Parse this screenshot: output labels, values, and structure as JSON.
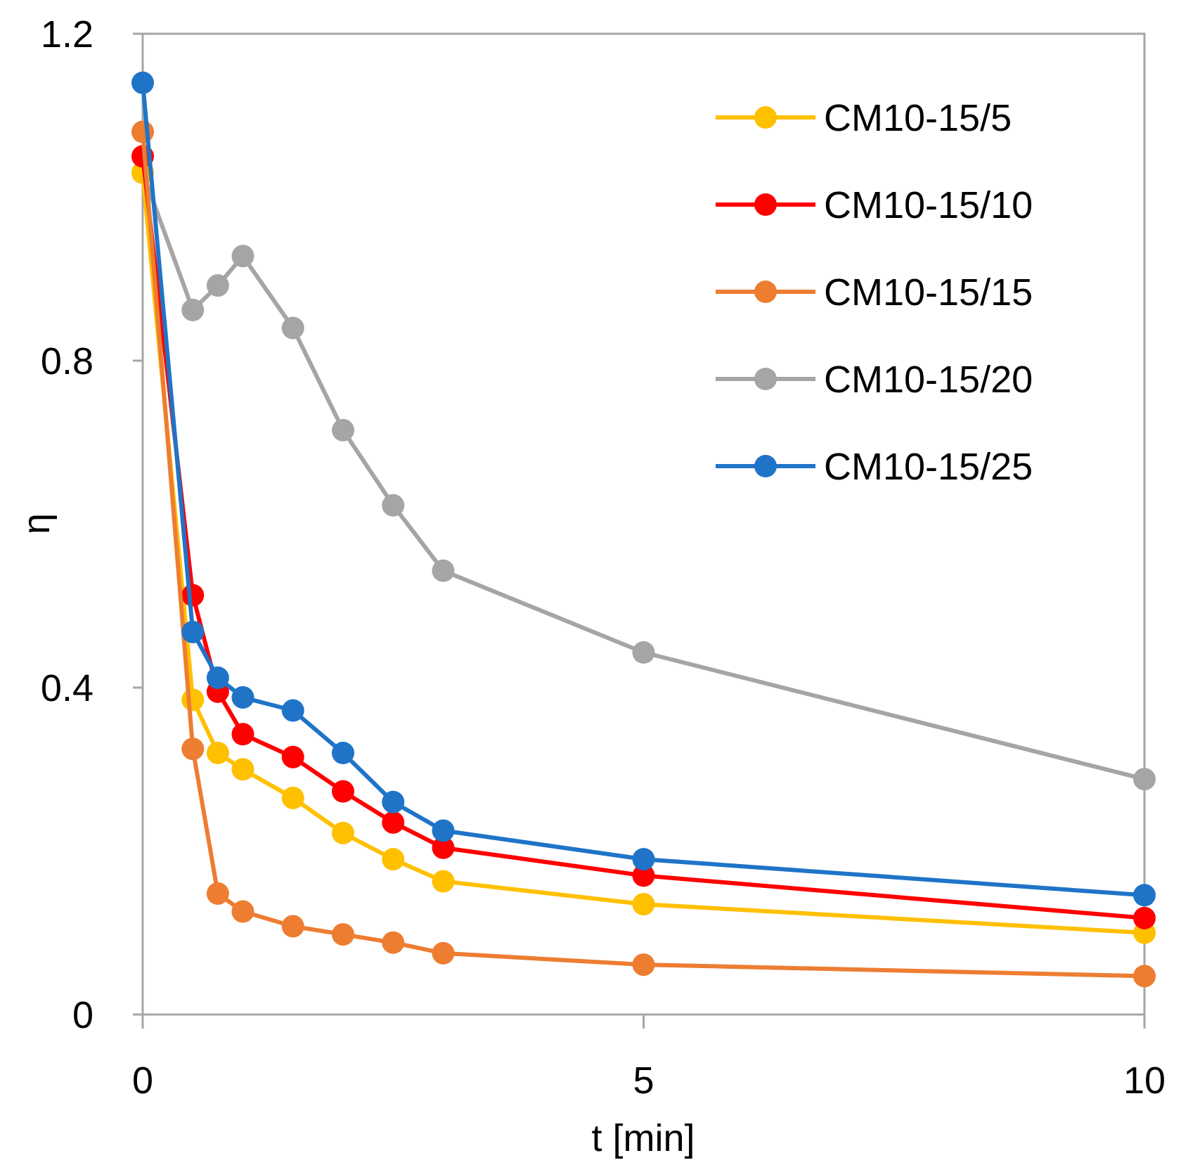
{
  "chart_data": {
    "type": "line",
    "title": "",
    "xlabel": "t [min]",
    "ylabel": "η",
    "xlim": [
      0,
      10
    ],
    "ylim": [
      0,
      1.2
    ],
    "xticks": [
      0,
      5,
      10
    ],
    "xtick_labels": [
      "0",
      "5",
      "10"
    ],
    "yticks": [
      0,
      0.4,
      0.8,
      1.2
    ],
    "ytick_labels": [
      "0",
      "0.4",
      "0.8",
      "1.2"
    ],
    "grid": false,
    "legend_position": "top-right",
    "series": [
      {
        "name": "CM10-15/5",
        "color": "#FFC000",
        "x": [
          0,
          0.5,
          0.75,
          1,
          1.5,
          2,
          2.5,
          3,
          5,
          10
        ],
        "y": [
          1.03,
          0.385,
          0.32,
          0.3,
          0.265,
          0.222,
          0.19,
          0.163,
          0.135,
          0.1
        ]
      },
      {
        "name": "CM10-15/10",
        "color": "#FF0000",
        "x": [
          0,
          0.5,
          0.75,
          1,
          1.5,
          2,
          2.5,
          3,
          5,
          10
        ],
        "y": [
          1.05,
          0.513,
          0.395,
          0.343,
          0.315,
          0.273,
          0.235,
          0.204,
          0.17,
          0.118
        ]
      },
      {
        "name": "CM10-15/15",
        "color": "#ED7D31",
        "x": [
          0,
          0.5,
          0.75,
          1,
          1.5,
          2,
          2.5,
          3,
          5,
          10
        ],
        "y": [
          1.08,
          0.325,
          0.148,
          0.126,
          0.108,
          0.098,
          0.088,
          0.075,
          0.061,
          0.047
        ]
      },
      {
        "name": "CM10-15/20",
        "color": "#A5A5A5",
        "x": [
          0,
          0.5,
          0.75,
          1,
          1.5,
          2,
          2.5,
          3,
          5,
          10
        ],
        "y": [
          1.03,
          0.862,
          0.892,
          0.928,
          0.84,
          0.715,
          0.623,
          0.543,
          0.443,
          0.288
        ]
      },
      {
        "name": "CM10-15/25",
        "color": "#1F74C8",
        "x": [
          0,
          0.5,
          0.75,
          1,
          1.5,
          2,
          2.5,
          3,
          5,
          10
        ],
        "y": [
          1.14,
          0.468,
          0.412,
          0.388,
          0.372,
          0.32,
          0.26,
          0.225,
          0.19,
          0.146
        ]
      }
    ]
  }
}
